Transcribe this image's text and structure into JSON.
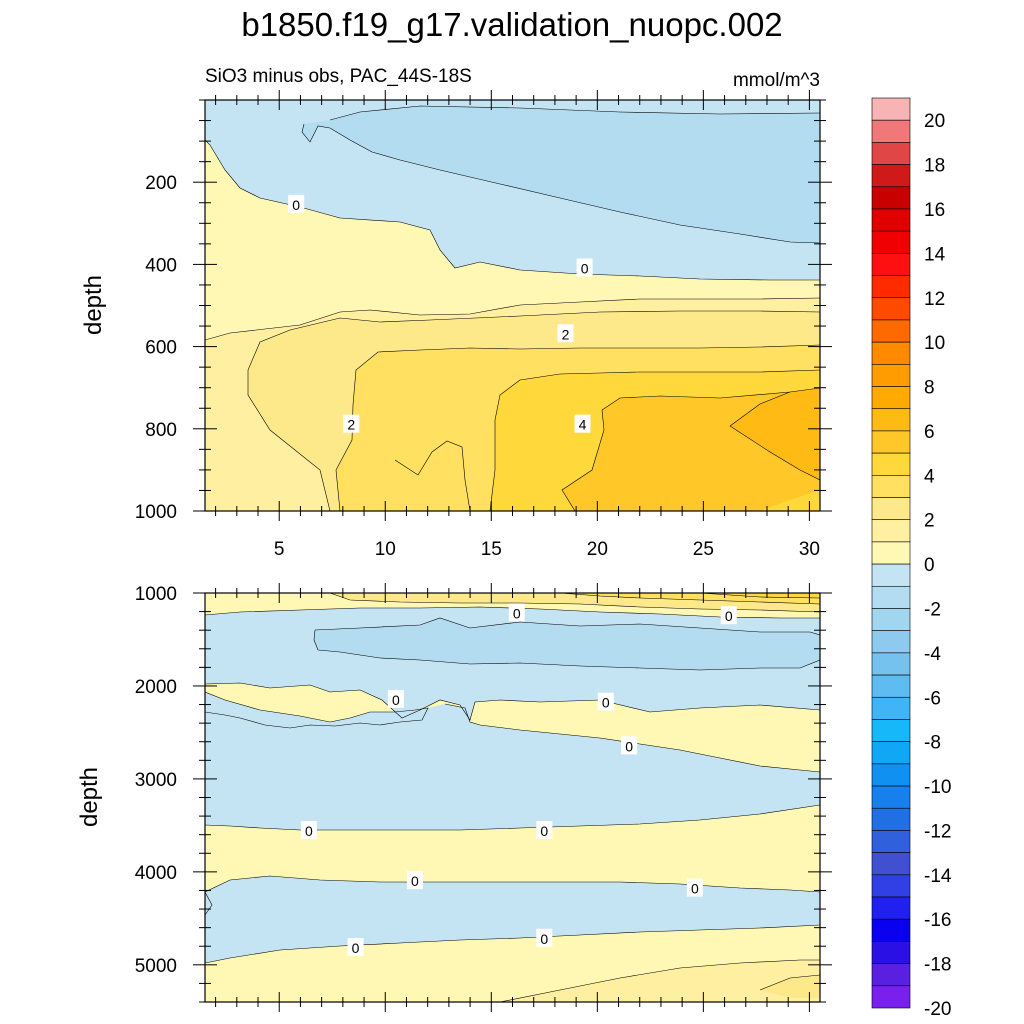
{
  "chart_data": {
    "type": "contour",
    "title": "b1850.f19_g17.validation_nuopc.002",
    "subtitle_left": "SiO3 minus obs, PAC_44S-18S",
    "units": "mmol/m^3",
    "ylabel": "depth",
    "xlim": [
      1.5,
      30.5
    ],
    "x_ticks": [
      5,
      10,
      15,
      20,
      25,
      30
    ],
    "x_tick_labels": [
      "5",
      "10",
      "15",
      "20",
      "25",
      "30"
    ],
    "panels": [
      {
        "name": "upper",
        "ylim": [
          0,
          1000
        ],
        "y_ticks": [
          200,
          400,
          600,
          800,
          1000
        ],
        "y_tick_labels": [
          "200",
          "400",
          "600",
          "800",
          "1000"
        ],
        "contour_labels": [
          {
            "text": "0",
            "x": 5.8,
            "y": 255
          },
          {
            "text": "0",
            "x": 19.4,
            "y": 410
          },
          {
            "text": "2",
            "x": 18.5,
            "y": 570
          },
          {
            "text": "2",
            "x": 8.4,
            "y": 790
          },
          {
            "text": "4",
            "x": 19.3,
            "y": 790
          }
        ]
      },
      {
        "name": "lower",
        "ylim": [
          1000,
          5400
        ],
        "y_ticks": [
          1000,
          2000,
          3000,
          4000,
          5000
        ],
        "y_tick_labels": [
          "1000",
          "2000",
          "3000",
          "4000",
          "5000"
        ],
        "contour_labels": [
          {
            "text": "0",
            "x": 16.2,
            "y": 1220
          },
          {
            "text": "0",
            "x": 26.2,
            "y": 1250
          },
          {
            "text": "0",
            "x": 10.5,
            "y": 2150
          },
          {
            "text": "0",
            "x": 20.4,
            "y": 2180
          },
          {
            "text": "0",
            "x": 21.5,
            "y": 2650
          },
          {
            "text": "0",
            "x": 6.4,
            "y": 3560
          },
          {
            "text": "0",
            "x": 17.5,
            "y": 3560
          },
          {
            "text": "0",
            "x": 11.4,
            "y": 4100
          },
          {
            "text": "0",
            "x": 24.6,
            "y": 4180
          },
          {
            "text": "0",
            "x": 8.6,
            "y": 4820
          },
          {
            "text": "0",
            "x": 17.5,
            "y": 4720
          }
        ]
      }
    ],
    "colorbar": {
      "levels": [
        -20,
        -18,
        -16,
        -14,
        -12,
        -10,
        -8,
        -6,
        -4,
        -2,
        0,
        2,
        4,
        6,
        8,
        10,
        12,
        14,
        16,
        18,
        20
      ],
      "labels": [
        "20",
        "18",
        "16",
        "14",
        "12",
        "10",
        "8",
        "6",
        "4",
        "2",
        "0",
        "-2",
        "-4",
        "-6",
        "-8",
        "-10",
        "-12",
        "-14",
        "-16",
        "-18",
        "-20"
      ],
      "colors_top_to_bottom": [
        "#f8b4b4",
        "#f07878",
        "#e04646",
        "#d01a1a",
        "#c80000",
        "#e00000",
        "#f00000",
        "#ff1010",
        "#ff2a00",
        "#ff4a00",
        "#ff6a00",
        "#ff8a00",
        "#ff9c00",
        "#ffaa00",
        "#ffbb14",
        "#ffc828",
        "#ffd83c",
        "#ffe060",
        "#fde88a",
        "#fef0a0",
        "#fff8b4",
        "#c4e4f4",
        "#b4dcf0",
        "#a2d6ee",
        "#8ecaee",
        "#76c2ee",
        "#5ebcf2",
        "#40b4f6",
        "#16b8fa",
        "#10a8f4",
        "#1090f0",
        "#1880ec",
        "#2070e4",
        "#3060dc",
        "#4050d0",
        "#3040e4",
        "#2020f0",
        "#0a00f0",
        "#2a10e4",
        "#5a20e0",
        "#7a20ec"
      ]
    }
  }
}
